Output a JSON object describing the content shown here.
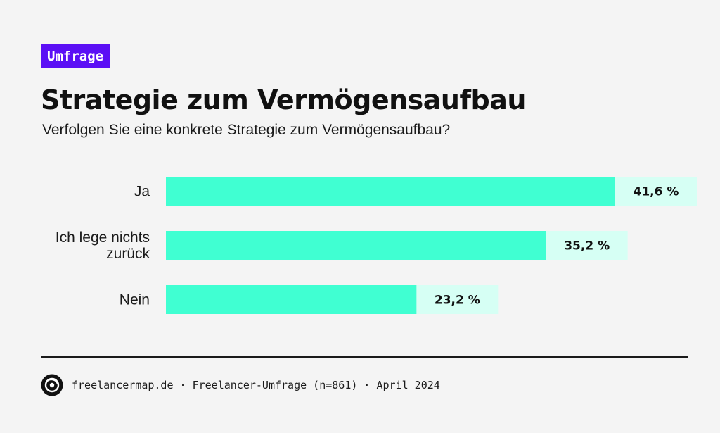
{
  "badge": "Umfrage",
  "title": "Strategie zum Vermögensaufbau",
  "subtitle": "Verfolgen Sie eine konkrete Strategie zum Vermögensaufbau?",
  "footer": {
    "source": "freelancermap.de · Freelancer-Umfrage (n=861) · April 2024",
    "logo_icon": "freelancermap-logo-icon"
  },
  "colors": {
    "bar": "#40ffd2",
    "bar_remainder": "#d6fff4",
    "badge": "#5b0ff5"
  },
  "chart_data": {
    "type": "bar",
    "orientation": "horizontal",
    "categories": [
      "Ja",
      "Ich lege nichts zurück",
      "Nein"
    ],
    "category_lines": [
      [
        "Ja"
      ],
      [
        "Ich lege nichts",
        "zurück"
      ],
      [
        "Nein"
      ]
    ],
    "values": [
      41.6,
      35.2,
      23.2
    ],
    "value_labels": [
      "41,6 %",
      "35,2 %",
      "23,2 %"
    ],
    "unit": "%",
    "xlim": [
      0,
      100
    ],
    "grid": false,
    "legend": "none"
  }
}
